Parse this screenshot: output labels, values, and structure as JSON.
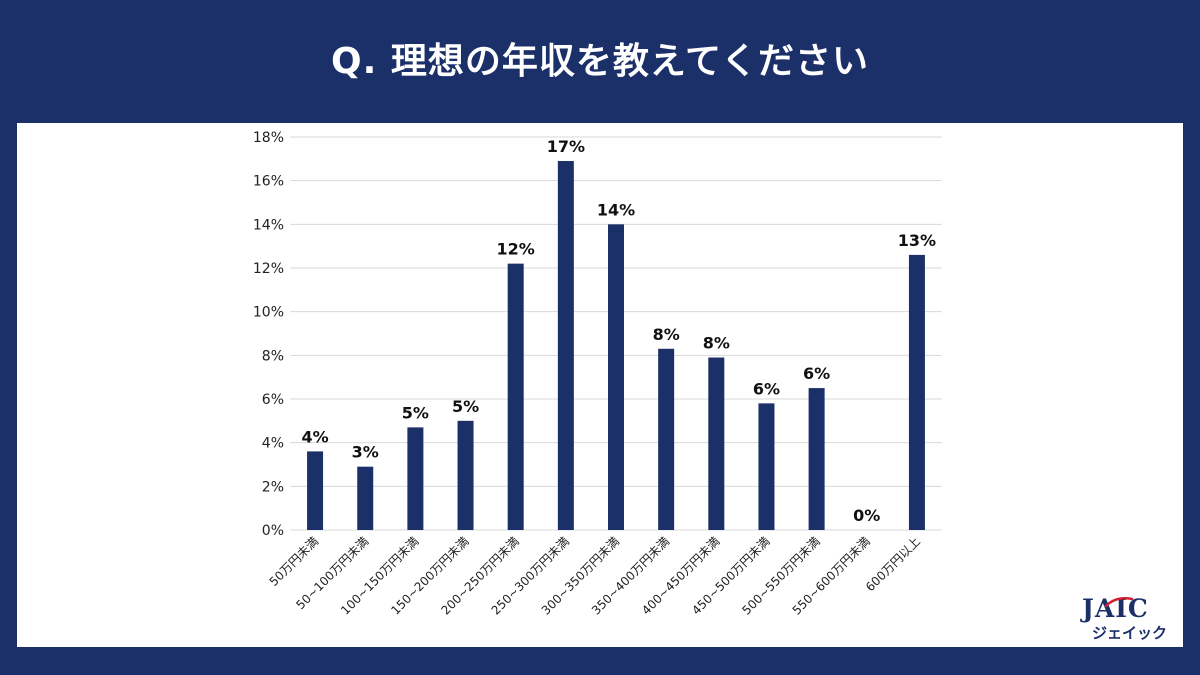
{
  "header": {
    "title": "Q.  理想の年収を教えてください"
  },
  "logo": {
    "main": "JAIC",
    "sub": "ジェイック"
  },
  "colors": {
    "background": "#1b2f69",
    "bar": "#1b2f69",
    "grid": "#d9d9d9",
    "panel": "#ffffff",
    "logo_accent": "#d0202e"
  },
  "chart_data": {
    "type": "bar",
    "categories": [
      "50万円未満",
      "50~100万円未満",
      "100~150万円未満",
      "150~200万円未満",
      "200~250万円未満",
      "250~300万円未満",
      "300~350万円未満",
      "350~400万円未満",
      "400~450万円未満",
      "450~500万円未満",
      "500~550万円未満",
      "550~600万円未満",
      "600万円以上"
    ],
    "values": [
      3.6,
      2.9,
      4.7,
      5.0,
      12.2,
      16.9,
      14.0,
      8.3,
      7.9,
      5.8,
      6.5,
      0,
      12.6
    ],
    "data_labels": [
      "4%",
      "3%",
      "5%",
      "5%",
      "12%",
      "17%",
      "14%",
      "8%",
      "8%",
      "6%",
      "6%",
      "0%",
      "13%"
    ],
    "ylim": [
      0,
      18
    ],
    "yticks": [
      "0%",
      "2%",
      "4%",
      "6%",
      "8%",
      "10%",
      "12%",
      "14%",
      "16%",
      "18%"
    ],
    "grid": true,
    "legend": "none"
  }
}
